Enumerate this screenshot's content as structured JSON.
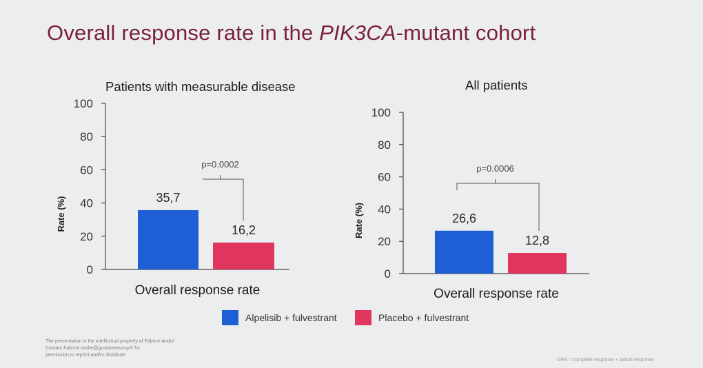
{
  "slide": {
    "title_prefix": "Overall response rate in the ",
    "title_gene": "PIK3CA",
    "title_suffix": "-mutant cohort"
  },
  "colors": {
    "alpelisib": "#1f5fd6",
    "placebo": "#e0355d",
    "title": "#7a1f3d"
  },
  "legend": [
    {
      "label": "Alpelisib + fulvestrant",
      "color": "#1f5fd6"
    },
    {
      "label": "Placebo + fulvestrant",
      "color": "#e0355d"
    }
  ],
  "chart_data": [
    {
      "type": "bar",
      "title": "Patients with measurable disease",
      "xlabel": "Overall response rate",
      "ylabel": "Rate (%)",
      "ylim": [
        0,
        100
      ],
      "yticks": [
        0,
        20,
        40,
        60,
        80,
        100
      ],
      "series": [
        {
          "name": "Alpelisib + fulvestrant",
          "value": 35.7,
          "label": "35,7"
        },
        {
          "name": "Placebo + fulvestrant",
          "value": 16.2,
          "label": "16,2"
        }
      ],
      "pvalue": "p=0.0002"
    },
    {
      "type": "bar",
      "title": "All patients",
      "xlabel": "Overall response rate",
      "ylabel": "Rate (%)",
      "ylim": [
        0,
        100
      ],
      "yticks": [
        0,
        20,
        40,
        60,
        80,
        100
      ],
      "series": [
        {
          "name": "Alpelisib + fulvestrant",
          "value": 26.6,
          "label": "26,6"
        },
        {
          "name": "Placebo + fulvestrant",
          "value": 12.8,
          "label": "12,8"
        }
      ],
      "pvalue": "p=0.0006"
    }
  ],
  "footnote": {
    "line1": "The presentation is the intellectual property of Fabrice André",
    "line2": "Contact Fabrice.andre@gustaveroussy.fr for",
    "line3": "permission to reprint and/or distribute"
  },
  "abbreviation": "ORR = complete response + partial response"
}
